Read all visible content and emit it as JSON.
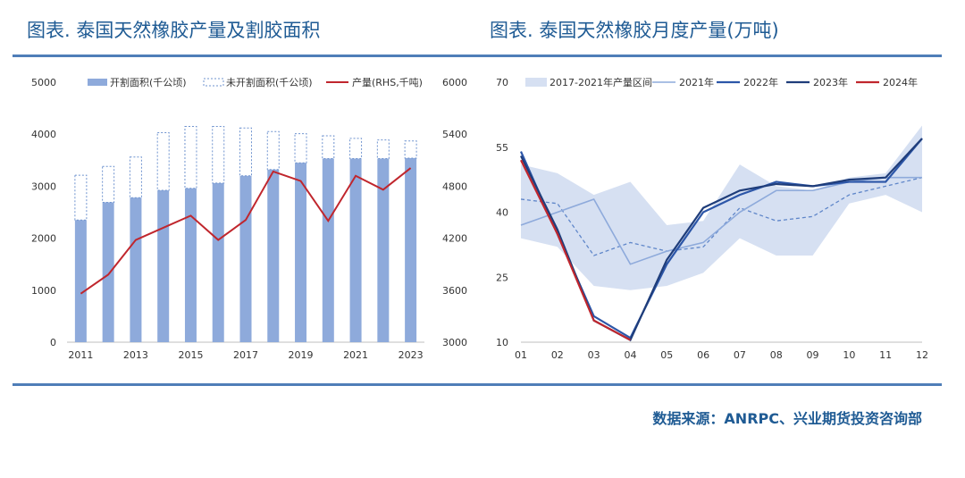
{
  "left_title": "图表. 泰国天然橡胶产量及割胶面积",
  "right_title": "图表. 泰国天然橡胶月度产量(万吨)",
  "source": "数据来源：ANRPC、兴业期货投资咨询部",
  "colors": {
    "title": "#1f5b94",
    "rule": "#4f7eb8",
    "bar": "#8eaadb",
    "bar_dash": "#6f93cf",
    "red": "#c0262d",
    "band": "#d6e0f2",
    "c2021": "#8eaadb",
    "c2022": "#2c56a8",
    "c2023": "#1f3d7a"
  },
  "chart_data": [
    {
      "type": "bar",
      "years": [
        "2011",
        "2012",
        "2013",
        "2014",
        "2015",
        "2016",
        "2017",
        "2018",
        "2019",
        "2020",
        "2021",
        "2022",
        "2023"
      ],
      "x_tick_labels": [
        "2011",
        "2013",
        "2015",
        "2017",
        "2019",
        "2021",
        "2023"
      ],
      "left_ylim": [
        0,
        5000
      ],
      "left_ticks": [
        "0",
        "1000",
        "2000",
        "3000",
        "4000",
        "5000"
      ],
      "right_ylim": [
        3000,
        6000
      ],
      "right_ticks": [
        "3000",
        "3600",
        "4200",
        "4800",
        "5400",
        "6000"
      ],
      "legend": [
        "开割面积(千公顷)",
        "未开割面积(千公顷)",
        "产量(RHS,千吨)"
      ],
      "tapped_area": [
        2350,
        2690,
        2780,
        2920,
        2960,
        3060,
        3200,
        3320,
        3450,
        3530,
        3530,
        3530,
        3540
      ],
      "untapped_area": [
        860,
        690,
        780,
        1110,
        1190,
        1090,
        920,
        730,
        560,
        440,
        390,
        360,
        330
      ],
      "production": [
        3560,
        3780,
        4180,
        4320,
        4460,
        4180,
        4410,
        4970,
        4860,
        4400,
        4920,
        4760,
        5010
      ]
    },
    {
      "type": "line",
      "x_tick_labels": [
        "01",
        "02",
        "03",
        "04",
        "05",
        "06",
        "07",
        "08",
        "09",
        "10",
        "11",
        "12"
      ],
      "ylim": [
        10,
        70
      ],
      "y_ticks": [
        "10",
        "25",
        "40",
        "55",
        "70"
      ],
      "legend": [
        "2017-2021年产量区间",
        "2021年",
        "2022年",
        "2023年",
        "2024年"
      ],
      "band_upper": [
        51,
        49,
        44,
        47,
        37,
        38,
        51,
        46,
        45,
        48,
        49,
        60
      ],
      "band_lower": [
        34,
        32,
        23,
        22,
        23,
        26,
        34,
        30,
        30,
        42,
        44,
        40
      ],
      "dashed_avg": [
        43,
        42,
        30,
        33,
        31,
        32,
        41,
        38,
        39,
        44,
        46,
        48
      ],
      "s2021": [
        37,
        40,
        43,
        28,
        31,
        33,
        40,
        45,
        45,
        47,
        48,
        48
      ],
      "s2022": [
        54,
        35,
        16,
        11,
        28,
        40,
        44,
        47,
        46,
        47,
        47,
        57
      ],
      "s2023": [
        53,
        36,
        15,
        10.5,
        29,
        41,
        45,
        46.5,
        46,
        47.5,
        48,
        57
      ],
      "s2024": [
        52,
        35,
        15,
        10.5
      ]
    }
  ]
}
